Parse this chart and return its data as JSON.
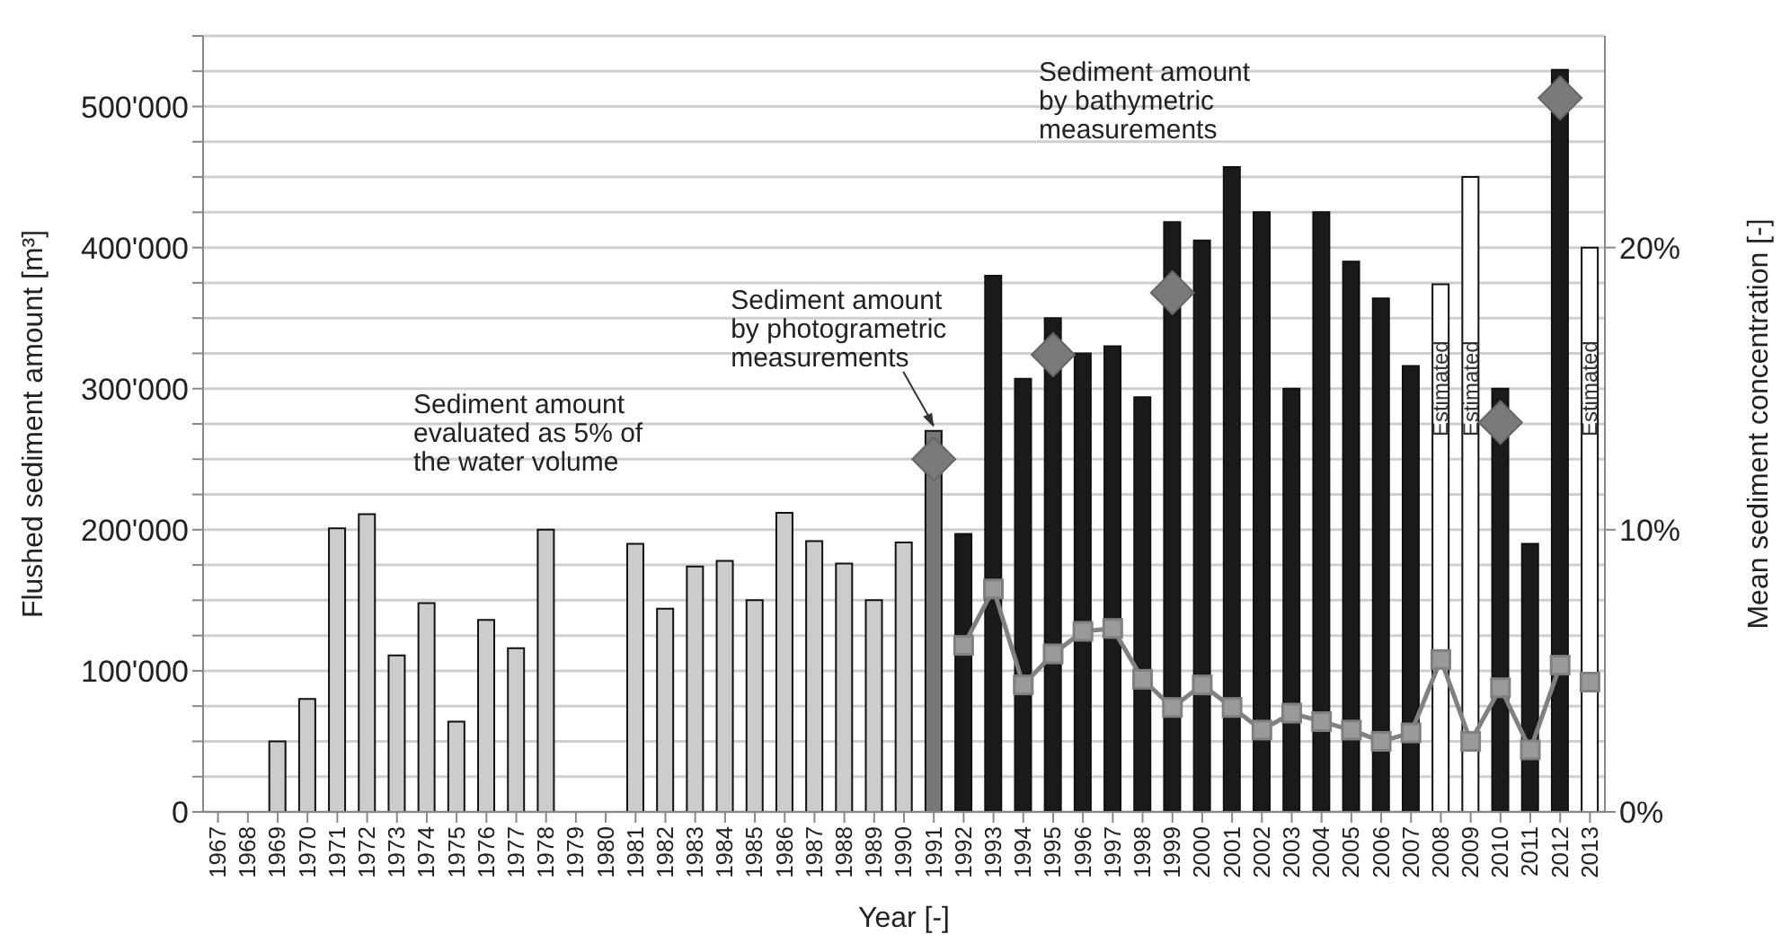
{
  "chart_data": {
    "type": "bar",
    "xlabel": "Year [-]",
    "ylabel": "Flushed sediment amount [m³]",
    "y2label": "Mean sediment concentration [-]",
    "categories": [
      "1967",
      "1968",
      "1969",
      "1970",
      "1971",
      "1972",
      "1973",
      "1974",
      "1975",
      "1976",
      "1977",
      "1978",
      "1979",
      "1980",
      "1981",
      "1982",
      "1983",
      "1984",
      "1985",
      "1986",
      "1987",
      "1988",
      "1989",
      "1990",
      "1991",
      "1992",
      "1993",
      "1994",
      "1995",
      "1996",
      "1997",
      "1998",
      "1999",
      "2000",
      "2001",
      "2002",
      "2003",
      "2004",
      "2005",
      "2006",
      "2007",
      "2008",
      "2009",
      "2010",
      "2011",
      "2012",
      "2013"
    ],
    "series": [
      {
        "colors": [
          "#cccccc",
          "#cccccc",
          "#cccccc",
          "#cccccc",
          "#cccccc",
          "#cccccc",
          "#cccccc",
          "#cccccc",
          "#cccccc",
          "#cccccc",
          "#cccccc",
          "#cccccc",
          "#cccccc",
          "#cccccc",
          "#cccccc",
          "#cccccc",
          "#cccccc",
          "#cccccc",
          "#cccccc",
          "#cccccc",
          "#cccccc",
          "#cccccc",
          "#cccccc",
          "#cccccc",
          "#777777",
          "#1a1a1a",
          "#1a1a1a",
          "#1a1a1a",
          "#1a1a1a",
          "#1a1a1a",
          "#1a1a1a",
          "#1a1a1a",
          "#1a1a1a",
          "#1a1a1a",
          "#1a1a1a",
          "#1a1a1a",
          "#1a1a1a",
          "#1a1a1a",
          "#1a1a1a",
          "#1a1a1a",
          "#1a1a1a",
          "#ffffff",
          "#ffffff",
          "#1a1a1a",
          "#1a1a1a",
          "#1a1a1a",
          "#ffffff"
        ],
        "values": [
          null,
          null,
          50000,
          80000,
          201000,
          211000,
          111000,
          148000,
          64000,
          136000,
          116000,
          200000,
          null,
          null,
          190000,
          144000,
          174000,
          178000,
          150000,
          212000,
          192000,
          176000,
          150000,
          191000,
          270000,
          197000,
          380000,
          307000,
          350000,
          325000,
          330000,
          294000,
          418000,
          405000,
          457000,
          425000,
          300000,
          425000,
          390000,
          364000,
          316000,
          374000,
          450000,
          300000,
          190000,
          526000,
          400000
        ]
      },
      {
        "type": "line",
        "axis": "y2",
        "color": "#808080",
        "marker": "square",
        "values": [
          null,
          null,
          null,
          null,
          null,
          null,
          null,
          null,
          null,
          null,
          null,
          null,
          null,
          null,
          null,
          null,
          null,
          null,
          null,
          null,
          null,
          null,
          null,
          null,
          null,
          5.9,
          7.9,
          4.5,
          5.6,
          6.4,
          6.5,
          4.7,
          3.7,
          4.5,
          3.7,
          2.9,
          3.5,
          3.2,
          2.9,
          2.5,
          2.8,
          5.4,
          2.5,
          4.4,
          2.2,
          5.2,
          null
        ]
      },
      {
        "type": "scatter",
        "axis": "y2",
        "color": "#808080",
        "marker": "square",
        "values": [
          null,
          null,
          null,
          null,
          null,
          null,
          null,
          null,
          null,
          null,
          null,
          null,
          null,
          null,
          null,
          null,
          null,
          null,
          null,
          null,
          null,
          null,
          null,
          null,
          null,
          null,
          null,
          null,
          null,
          null,
          null,
          null,
          null,
          null,
          null,
          null,
          null,
          null,
          null,
          null,
          null,
          null,
          null,
          null,
          null,
          null,
          4.6
        ]
      },
      {
        "type": "scatter",
        "axis": "y2",
        "color": "#7a7a7a",
        "marker": "diamond",
        "values": [
          null,
          null,
          null,
          null,
          null,
          null,
          null,
          null,
          null,
          null,
          null,
          null,
          null,
          null,
          null,
          null,
          null,
          null,
          null,
          null,
          null,
          null,
          null,
          null,
          12.5,
          null,
          null,
          null,
          16.2,
          null,
          null,
          null,
          18.4,
          null,
          null,
          null,
          null,
          null,
          null,
          null,
          null,
          null,
          null,
          13.8,
          null,
          25.3,
          null
        ]
      }
    ],
    "ylim": [
      0,
      550000
    ],
    "yticks": [
      {
        "value": 0,
        "label": "0"
      },
      {
        "value": 25000,
        "label": null
      },
      {
        "value": 50000,
        "label": null
      },
      {
        "value": 75000,
        "label": null
      },
      {
        "value": 100000,
        "label": "100'000"
      },
      {
        "value": 125000,
        "label": null
      },
      {
        "value": 150000,
        "label": null
      },
      {
        "value": 175000,
        "label": null
      },
      {
        "value": 200000,
        "label": "200'000"
      },
      {
        "value": 225000,
        "label": null
      },
      {
        "value": 250000,
        "label": null
      },
      {
        "value": 275000,
        "label": null
      },
      {
        "value": 300000,
        "label": "300'000"
      },
      {
        "value": 325000,
        "label": null
      },
      {
        "value": 350000,
        "label": null
      },
      {
        "value": 375000,
        "label": null
      },
      {
        "value": 400000,
        "label": "400'000"
      },
      {
        "value": 425000,
        "label": null
      },
      {
        "value": 450000,
        "label": null
      },
      {
        "value": 475000,
        "label": null
      },
      {
        "value": 500000,
        "label": "500'000"
      },
      {
        "value": 525000,
        "label": null
      },
      {
        "value": 550000,
        "label": null
      }
    ],
    "y2lim": [
      0,
      27.5
    ],
    "y2ticks": [
      {
        "value": 0,
        "label": "0%"
      },
      {
        "value": 10,
        "label": "10%"
      },
      {
        "value": 20,
        "label": "20%"
      }
    ],
    "grid": "y",
    "annotations": [
      "Sediment amount\nevaluated as 5% of\nthe water volume",
      "Sediment amount\nby bathymetric\nmeasurements",
      {
        "text": "Sediment amount\nby photogrametric\nmeasurements",
        "x": "1991",
        "y": 270000
      },
      {
        "text": "Estimated",
        "x": "2008",
        "y": 300000
      },
      {
        "text": "Estimated",
        "x": "2009",
        "y": 300000
      },
      {
        "text": "Estimated",
        "x": "2013",
        "y": 300000
      }
    ]
  }
}
